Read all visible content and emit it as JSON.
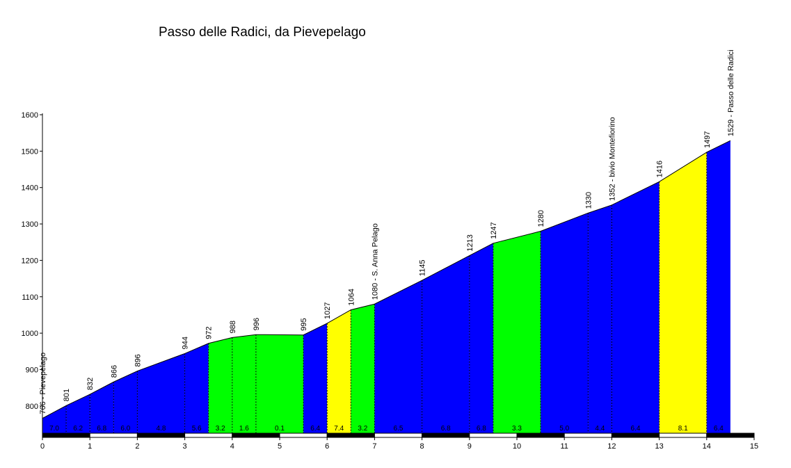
{
  "chart_data": {
    "type": "area",
    "title": "Passo delle Radici, da Pievepelago",
    "xlim": [
      0,
      15
    ],
    "ylim": [
      720,
      1600
    ],
    "x_ticks": [
      "0",
      "1",
      "2",
      "3",
      "4",
      "5",
      "6",
      "7",
      "8",
      "9",
      "10",
      "11",
      "12",
      "13",
      "14",
      "15"
    ],
    "y_ticks": [
      "800",
      "900",
      "1000",
      "1100",
      "1200",
      "1300",
      "1400",
      "1500",
      "1600"
    ],
    "y_tick_values": [
      800,
      900,
      1000,
      1100,
      1200,
      1300,
      1400,
      1500,
      1600
    ],
    "points": [
      {
        "x": 0,
        "y": 766,
        "label": "766 - Pievepelago"
      },
      {
        "x": 0.5,
        "y": 801,
        "label": "801"
      },
      {
        "x": 1,
        "y": 832,
        "label": "832"
      },
      {
        "x": 1.5,
        "y": 866,
        "label": "866"
      },
      {
        "x": 2,
        "y": 896,
        "label": "896"
      },
      {
        "x": 3,
        "y": 944,
        "label": "944"
      },
      {
        "x": 3.5,
        "y": 972,
        "label": "972"
      },
      {
        "x": 4,
        "y": 988,
        "label": "988"
      },
      {
        "x": 4.5,
        "y": 996,
        "label": "996"
      },
      {
        "x": 5.5,
        "y": 995,
        "label": "995"
      },
      {
        "x": 6,
        "y": 1027,
        "label": "1027"
      },
      {
        "x": 6.5,
        "y": 1064,
        "label": "1064"
      },
      {
        "x": 7,
        "y": 1080,
        "label": "1080 - S. Anna Pelago"
      },
      {
        "x": 8,
        "y": 1145,
        "label": "1145"
      },
      {
        "x": 9,
        "y": 1213,
        "label": "1213"
      },
      {
        "x": 9.5,
        "y": 1247,
        "label": "1247"
      },
      {
        "x": 10.5,
        "y": 1280,
        "label": "1280"
      },
      {
        "x": 11.5,
        "y": 1330,
        "label": "1330"
      },
      {
        "x": 12,
        "y": 1352,
        "label": "1352 - bivio Montefiorino"
      },
      {
        "x": 13,
        "y": 1416,
        "label": "1416"
      },
      {
        "x": 14,
        "y": 1497,
        "label": "1497"
      },
      {
        "x": 14.5,
        "y": 1529,
        "label": "1529 - Passo delle Radici"
      }
    ],
    "segments": [
      {
        "grade": "7.0",
        "color": "#0000ff"
      },
      {
        "grade": "6.2",
        "color": "#0000ff"
      },
      {
        "grade": "6.8",
        "color": "#0000ff"
      },
      {
        "grade": "6.0",
        "color": "#0000ff"
      },
      {
        "grade": "4.8",
        "color": "#0000ff"
      },
      {
        "grade": "5.6",
        "color": "#0000ff"
      },
      {
        "grade": "3.2",
        "color": "#00ff00"
      },
      {
        "grade": "1.6",
        "color": "#00ff00"
      },
      {
        "grade": "0.1",
        "color": "#00ff00"
      },
      {
        "grade": "6.4",
        "color": "#0000ff"
      },
      {
        "grade": "7.4",
        "color": "#ffff00"
      },
      {
        "grade": "3.2",
        "color": "#00ff00"
      },
      {
        "grade": "6.5",
        "color": "#0000ff"
      },
      {
        "grade": "6.8",
        "color": "#0000ff"
      },
      {
        "grade": "6.8",
        "color": "#0000ff"
      },
      {
        "grade": "3.3",
        "color": "#00ff00"
      },
      {
        "grade": "5.0",
        "color": "#0000ff"
      },
      {
        "grade": "4.4",
        "color": "#0000ff"
      },
      {
        "grade": "6.4",
        "color": "#0000ff"
      },
      {
        "grade": "8.1",
        "color": "#ffff00"
      },
      {
        "grade": "6.4",
        "color": "#0000ff"
      }
    ],
    "grid": false,
    "colors": {
      "steep": "#ffff00",
      "moderate": "#0000ff",
      "easy": "#00ff00"
    }
  }
}
